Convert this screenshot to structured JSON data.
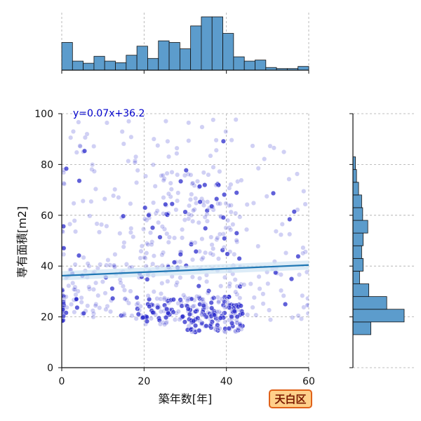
{
  "chart_data": {
    "type": "scatter",
    "xlabel": "築年数[年]",
    "ylabel": "専有面積[m2]",
    "xlim": [
      0,
      60
    ],
    "ylim": [
      0,
      100
    ],
    "x_ticks": [
      0,
      20,
      40,
      60
    ],
    "y_ticks": [
      0,
      20,
      40,
      60,
      80,
      100
    ],
    "grid": true,
    "annotation": "y=0.07x+36.2",
    "badge": "天白区",
    "regression": {
      "slope": 0.07,
      "intercept": 36.2,
      "x_range": [
        0,
        60
      ]
    },
    "colors": {
      "points": "#2b2bcc",
      "regression": "#1f77b4",
      "band": "#cfe4f3",
      "hist": "#5c9ccc",
      "badge_fill": "#ffd08a",
      "badge_border": "#e0621a"
    },
    "marginal_x_hist": {
      "bin_edges": [
        0,
        2.61,
        5.22,
        7.83,
        10.43,
        13.04,
        15.65,
        18.26,
        20.87,
        23.48,
        26.09,
        28.7,
        31.3,
        33.91,
        36.52,
        39.13,
        41.74,
        44.35,
        46.96,
        49.57,
        52.17,
        54.78,
        57.39,
        60
      ],
      "heights": [
        0.52,
        0.17,
        0.13,
        0.26,
        0.17,
        0.14,
        0.28,
        0.45,
        0.22,
        0.55,
        0.52,
        0.4,
        0.83,
        1.0,
        1.0,
        0.69,
        0.25,
        0.17,
        0.19,
        0.05,
        0.03,
        0.03,
        0.07
      ]
    },
    "marginal_y_hist": {
      "bin_edges": [
        13,
        18,
        23,
        28,
        33,
        38,
        43,
        48,
        53,
        58,
        63,
        68,
        73,
        78,
        83
      ],
      "heights": [
        0.35,
        1.0,
        0.66,
        0.31,
        0.13,
        0.2,
        0.17,
        0.2,
        0.29,
        0.19,
        0.17,
        0.11,
        0.07,
        0.05
      ]
    },
    "point_clusters": [
      {
        "x_range": [
          0,
          0.6
        ],
        "y_range": [
          18,
          32
        ],
        "count": 14,
        "seed": 1,
        "dark_ratio": 0.6
      },
      {
        "x_range": [
          0,
          0.6
        ],
        "y_range": [
          34,
          82
        ],
        "count": 10,
        "seed": 2,
        "dark_ratio": 0.2
      },
      {
        "x_range": [
          1,
          20
        ],
        "y_range": [
          19,
          42
        ],
        "count": 90,
        "seed": 3,
        "dark_ratio": 0.2
      },
      {
        "x_range": [
          1,
          20
        ],
        "y_range": [
          42,
          97
        ],
        "count": 60,
        "seed": 4,
        "dark_ratio": 0.1
      },
      {
        "x_range": [
          18,
          30
        ],
        "y_range": [
          17,
          28
        ],
        "count": 70,
        "seed": 5,
        "dark_ratio": 0.45
      },
      {
        "x_range": [
          30,
          44
        ],
        "y_range": [
          14,
          28
        ],
        "count": 160,
        "seed": 6,
        "dark_ratio": 0.55
      },
      {
        "x_range": [
          20,
          44
        ],
        "y_range": [
          28,
          78
        ],
        "count": 210,
        "seed": 7,
        "dark_ratio": 0.25
      },
      {
        "x_range": [
          20,
          44
        ],
        "y_range": [
          78,
          99
        ],
        "count": 20,
        "seed": 8,
        "dark_ratio": 0.05
      },
      {
        "x_range": [
          44,
          60
        ],
        "y_range": [
          18,
          55
        ],
        "count": 45,
        "seed": 9,
        "dark_ratio": 0.08
      },
      {
        "x_range": [
          44,
          60
        ],
        "y_range": [
          55,
          90
        ],
        "count": 18,
        "seed": 10,
        "dark_ratio": 0.05
      }
    ]
  }
}
